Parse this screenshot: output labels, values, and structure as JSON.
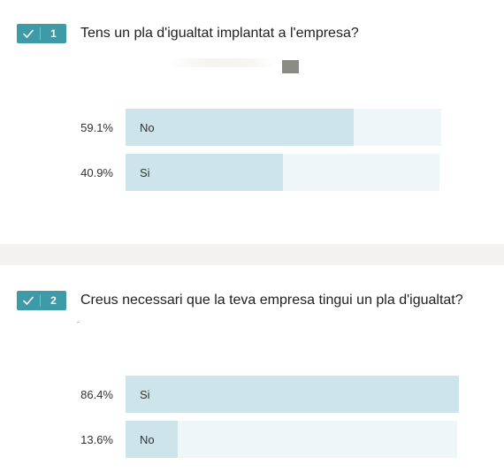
{
  "questions": [
    {
      "number": "1",
      "title": "Tens un pla d'igualtat implantat a l'empresa?",
      "results": [
        {
          "percent": "59.1%",
          "label": "No",
          "value": 59.1
        },
        {
          "percent": "40.9%",
          "label": "Si",
          "value": 40.9
        }
      ]
    },
    {
      "number": "2",
      "title": "Creus necessari que la teva empresa tingui un pla d'igualtat?",
      "results": [
        {
          "percent": "86.4%",
          "label": "Si",
          "value": 86.4
        },
        {
          "percent": "13.6%",
          "label": "No",
          "value": 13.6
        }
      ]
    }
  ],
  "colors": {
    "badge": "#3d9aa6",
    "bar_fill": "#cde5ea",
    "bar_track": "#eff6f8",
    "separator": "#f3f2f1"
  },
  "icons": {
    "badge_icon": "checkmark-icon"
  }
}
